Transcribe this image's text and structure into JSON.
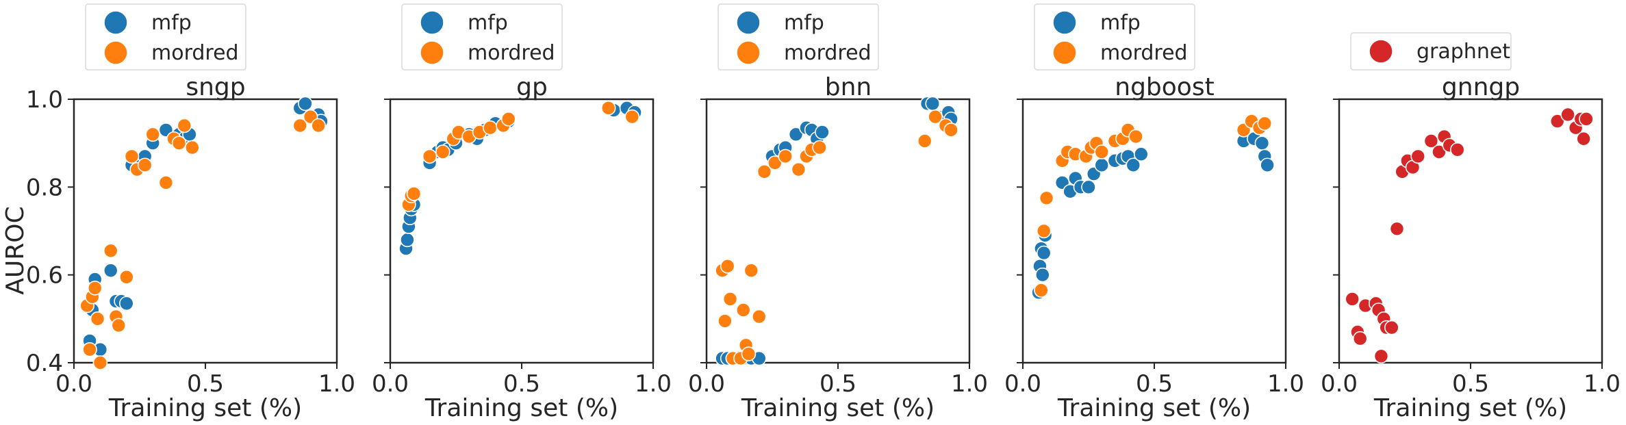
{
  "figure": {
    "ylabel": "AUROC",
    "xlabel": "Training set (%)",
    "xticks": [
      "0.0",
      "0.5",
      "1.0"
    ],
    "yticks": [
      "0.4",
      "0.6",
      "0.8",
      "1.0"
    ]
  },
  "chart_data": [
    {
      "type": "scatter",
      "title": "sngp",
      "xlabel": "Training set (%)",
      "ylabel": "AUROC",
      "xlim": [
        0,
        1
      ],
      "ylim": [
        0.4,
        1.0
      ],
      "grid": false,
      "legend_placement": "above",
      "series": [
        {
          "name": "mfp",
          "color": "#1f77b4",
          "points": [
            [
              0.06,
              0.45
            ],
            [
              0.07,
              0.52
            ],
            [
              0.08,
              0.59
            ],
            [
              0.1,
              0.43
            ],
            [
              0.14,
              0.61
            ],
            [
              0.16,
              0.54
            ],
            [
              0.18,
              0.54
            ],
            [
              0.2,
              0.535
            ],
            [
              0.22,
              0.85
            ],
            [
              0.25,
              0.86
            ],
            [
              0.27,
              0.87
            ],
            [
              0.3,
              0.9
            ],
            [
              0.35,
              0.93
            ],
            [
              0.4,
              0.92
            ],
            [
              0.42,
              0.91
            ],
            [
              0.44,
              0.92
            ],
            [
              0.86,
              0.98
            ],
            [
              0.88,
              0.99
            ],
            [
              0.91,
              0.96
            ],
            [
              0.93,
              0.965
            ],
            [
              0.94,
              0.95
            ]
          ]
        },
        {
          "name": "mordred",
          "color": "#ff7f0e",
          "points": [
            [
              0.05,
              0.53
            ],
            [
              0.06,
              0.43
            ],
            [
              0.07,
              0.55
            ],
            [
              0.08,
              0.57
            ],
            [
              0.09,
              0.5
            ],
            [
              0.1,
              0.4
            ],
            [
              0.14,
              0.655
            ],
            [
              0.16,
              0.505
            ],
            [
              0.17,
              0.485
            ],
            [
              0.2,
              0.595
            ],
            [
              0.22,
              0.87
            ],
            [
              0.24,
              0.84
            ],
            [
              0.27,
              0.85
            ],
            [
              0.3,
              0.92
            ],
            [
              0.35,
              0.81
            ],
            [
              0.38,
              0.91
            ],
            [
              0.4,
              0.9
            ],
            [
              0.42,
              0.94
            ],
            [
              0.45,
              0.89
            ],
            [
              0.86,
              0.94
            ],
            [
              0.9,
              0.96
            ],
            [
              0.93,
              0.94
            ]
          ]
        }
      ]
    },
    {
      "type": "scatter",
      "title": "gp",
      "xlabel": "Training set (%)",
      "xlim": [
        0,
        1
      ],
      "ylim": [
        0.4,
        1.0
      ],
      "grid": false,
      "legend_placement": "above",
      "series": [
        {
          "name": "mfp",
          "color": "#1f77b4",
          "points": [
            [
              0.06,
              0.66
            ],
            [
              0.065,
              0.68
            ],
            [
              0.07,
              0.71
            ],
            [
              0.075,
              0.73
            ],
            [
              0.08,
              0.75
            ],
            [
              0.09,
              0.76
            ],
            [
              0.15,
              0.855
            ],
            [
              0.18,
              0.88
            ],
            [
              0.2,
              0.89
            ],
            [
              0.22,
              0.885
            ],
            [
              0.25,
              0.9
            ],
            [
              0.3,
              0.92
            ],
            [
              0.33,
              0.91
            ],
            [
              0.36,
              0.93
            ],
            [
              0.4,
              0.945
            ],
            [
              0.45,
              0.95
            ],
            [
              0.85,
              0.975
            ],
            [
              0.9,
              0.98
            ],
            [
              0.93,
              0.97
            ]
          ]
        },
        {
          "name": "mordred",
          "color": "#ff7f0e",
          "points": [
            [
              0.07,
              0.76
            ],
            [
              0.08,
              0.78
            ],
            [
              0.09,
              0.785
            ],
            [
              0.15,
              0.87
            ],
            [
              0.2,
              0.88
            ],
            [
              0.24,
              0.91
            ],
            [
              0.26,
              0.925
            ],
            [
              0.3,
              0.915
            ],
            [
              0.34,
              0.925
            ],
            [
              0.38,
              0.935
            ],
            [
              0.43,
              0.94
            ],
            [
              0.45,
              0.955
            ],
            [
              0.83,
              0.98
            ],
            [
              0.92,
              0.96
            ]
          ]
        }
      ]
    },
    {
      "type": "scatter",
      "title": "bnn",
      "xlabel": "Training set (%)",
      "xlim": [
        0,
        1
      ],
      "ylim": [
        0.4,
        1.0
      ],
      "grid": false,
      "legend_placement": "above",
      "series": [
        {
          "name": "mfp",
          "color": "#1f77b4",
          "points": [
            [
              0.06,
              0.41
            ],
            [
              0.08,
              0.41
            ],
            [
              0.1,
              0.41
            ],
            [
              0.14,
              0.41
            ],
            [
              0.17,
              0.41
            ],
            [
              0.2,
              0.41
            ],
            [
              0.25,
              0.87
            ],
            [
              0.28,
              0.885
            ],
            [
              0.3,
              0.89
            ],
            [
              0.34,
              0.92
            ],
            [
              0.38,
              0.935
            ],
            [
              0.4,
              0.93
            ],
            [
              0.42,
              0.91
            ],
            [
              0.44,
              0.925
            ],
            [
              0.84,
              0.99
            ],
            [
              0.86,
              0.99
            ],
            [
              0.9,
              0.96
            ],
            [
              0.92,
              0.97
            ],
            [
              0.93,
              0.955
            ]
          ]
        },
        {
          "name": "mordred",
          "color": "#ff7f0e",
          "points": [
            [
              0.06,
              0.61
            ],
            [
              0.07,
              0.495
            ],
            [
              0.08,
              0.62
            ],
            [
              0.09,
              0.545
            ],
            [
              0.1,
              0.41
            ],
            [
              0.13,
              0.41
            ],
            [
              0.14,
              0.52
            ],
            [
              0.15,
              0.44
            ],
            [
              0.16,
              0.42
            ],
            [
              0.17,
              0.61
            ],
            [
              0.2,
              0.505
            ],
            [
              0.22,
              0.835
            ],
            [
              0.26,
              0.855
            ],
            [
              0.3,
              0.87
            ],
            [
              0.35,
              0.84
            ],
            [
              0.38,
              0.87
            ],
            [
              0.4,
              0.885
            ],
            [
              0.43,
              0.89
            ],
            [
              0.83,
              0.905
            ],
            [
              0.87,
              0.96
            ],
            [
              0.91,
              0.94
            ],
            [
              0.93,
              0.93
            ]
          ]
        }
      ]
    },
    {
      "type": "scatter",
      "title": "ngboost",
      "xlabel": "Training set (%)",
      "xlim": [
        0,
        1
      ],
      "ylim": [
        0.4,
        1.0
      ],
      "grid": false,
      "legend_placement": "above",
      "series": [
        {
          "name": "mfp",
          "color": "#1f77b4",
          "points": [
            [
              0.06,
              0.56
            ],
            [
              0.065,
              0.62
            ],
            [
              0.07,
              0.66
            ],
            [
              0.075,
              0.6
            ],
            [
              0.08,
              0.65
            ],
            [
              0.085,
              0.69
            ],
            [
              0.15,
              0.81
            ],
            [
              0.18,
              0.79
            ],
            [
              0.2,
              0.82
            ],
            [
              0.22,
              0.8
            ],
            [
              0.25,
              0.8
            ],
            [
              0.27,
              0.83
            ],
            [
              0.3,
              0.85
            ],
            [
              0.35,
              0.86
            ],
            [
              0.38,
              0.865
            ],
            [
              0.4,
              0.87
            ],
            [
              0.42,
              0.85
            ],
            [
              0.45,
              0.875
            ],
            [
              0.84,
              0.905
            ],
            [
              0.88,
              0.91
            ],
            [
              0.91,
              0.9
            ],
            [
              0.92,
              0.87
            ],
            [
              0.93,
              0.85
            ]
          ]
        },
        {
          "name": "mordred",
          "color": "#ff7f0e",
          "points": [
            [
              0.07,
              0.565
            ],
            [
              0.08,
              0.7
            ],
            [
              0.09,
              0.775
            ],
            [
              0.15,
              0.86
            ],
            [
              0.17,
              0.88
            ],
            [
              0.2,
              0.875
            ],
            [
              0.24,
              0.87
            ],
            [
              0.26,
              0.89
            ],
            [
              0.28,
              0.9
            ],
            [
              0.3,
              0.88
            ],
            [
              0.35,
              0.905
            ],
            [
              0.38,
              0.91
            ],
            [
              0.4,
              0.93
            ],
            [
              0.43,
              0.915
            ],
            [
              0.84,
              0.93
            ],
            [
              0.87,
              0.95
            ],
            [
              0.9,
              0.935
            ],
            [
              0.92,
              0.945
            ]
          ]
        }
      ]
    },
    {
      "type": "scatter",
      "title": "gnngp",
      "xlabel": "Training set (%)",
      "xlim": [
        0,
        1
      ],
      "ylim": [
        0.4,
        1.0
      ],
      "grid": false,
      "legend_placement": "above",
      "series": [
        {
          "name": "graphnet",
          "color": "#d62728",
          "points": [
            [
              0.05,
              0.545
            ],
            [
              0.07,
              0.47
            ],
            [
              0.08,
              0.455
            ],
            [
              0.1,
              0.53
            ],
            [
              0.14,
              0.535
            ],
            [
              0.15,
              0.52
            ],
            [
              0.17,
              0.5
            ],
            [
              0.18,
              0.48
            ],
            [
              0.2,
              0.48
            ],
            [
              0.16,
              0.415
            ],
            [
              0.22,
              0.705
            ],
            [
              0.24,
              0.835
            ],
            [
              0.26,
              0.86
            ],
            [
              0.28,
              0.845
            ],
            [
              0.3,
              0.87
            ],
            [
              0.35,
              0.905
            ],
            [
              0.38,
              0.88
            ],
            [
              0.4,
              0.915
            ],
            [
              0.42,
              0.895
            ],
            [
              0.45,
              0.885
            ],
            [
              0.83,
              0.95
            ],
            [
              0.87,
              0.965
            ],
            [
              0.9,
              0.935
            ],
            [
              0.92,
              0.955
            ],
            [
              0.93,
              0.91
            ],
            [
              0.94,
              0.955
            ]
          ]
        }
      ]
    }
  ]
}
